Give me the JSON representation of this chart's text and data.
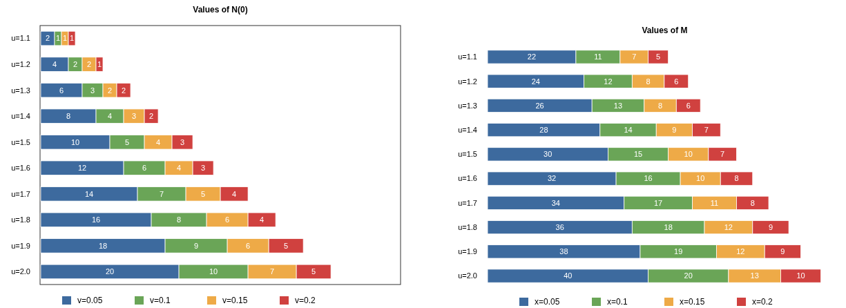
{
  "chart_data": [
    {
      "type": "bar",
      "orientation": "horizontal",
      "stacked": true,
      "title": "Values of N(0)",
      "categories": [
        "u=1.1",
        "u=1.2",
        "u=1.3",
        "u=1.4",
        "u=1.5",
        "u=1.6",
        "u=1.7",
        "u=1.8",
        "u=1.9",
        "u=2.0"
      ],
      "series": [
        {
          "name": "v=0.05",
          "color": "#3d6a9e",
          "values": [
            2,
            4,
            6,
            8,
            10,
            12,
            14,
            16,
            18,
            20
          ]
        },
        {
          "name": "v=0.1",
          "color": "#6aa557",
          "values": [
            1,
            2,
            3,
            4,
            5,
            6,
            7,
            8,
            9,
            10
          ]
        },
        {
          "name": "v=0.15",
          "color": "#eeaa47",
          "values": [
            1,
            2,
            2,
            3,
            4,
            4,
            5,
            6,
            6,
            7
          ]
        },
        {
          "name": "v=0.2",
          "color": "#d0413f",
          "values": [
            1,
            1,
            2,
            2,
            3,
            3,
            4,
            4,
            5,
            5
          ]
        }
      ],
      "data_labels": true,
      "legend": "bottom",
      "tick_labels": "y"
    },
    {
      "type": "bar",
      "orientation": "horizontal",
      "stacked": true,
      "title": "Values of M",
      "categories": [
        "u=1.1",
        "u=1.2",
        "u=1.3",
        "u=1.4",
        "u=1.5",
        "u=1.6",
        "u=1.7",
        "u=1.8",
        "u=1.9",
        "u=2.0"
      ],
      "series": [
        {
          "name": "x=0.05",
          "color": "#3d6a9e",
          "values": [
            22,
            24,
            26,
            28,
            30,
            32,
            34,
            36,
            38,
            40
          ]
        },
        {
          "name": "x=0.1",
          "color": "#6aa557",
          "values": [
            11,
            12,
            13,
            14,
            15,
            16,
            17,
            18,
            19,
            20
          ]
        },
        {
          "name": "x=0.15",
          "color": "#eeaa47",
          "values": [
            7,
            8,
            8,
            9,
            10,
            10,
            11,
            12,
            12,
            13
          ]
        },
        {
          "name": "x=0.2",
          "color": "#d0413f",
          "values": [
            5,
            6,
            6,
            7,
            7,
            8,
            8,
            9,
            9,
            10
          ]
        }
      ],
      "data_labels": true,
      "legend": "bottom",
      "tick_labels": "y"
    }
  ]
}
